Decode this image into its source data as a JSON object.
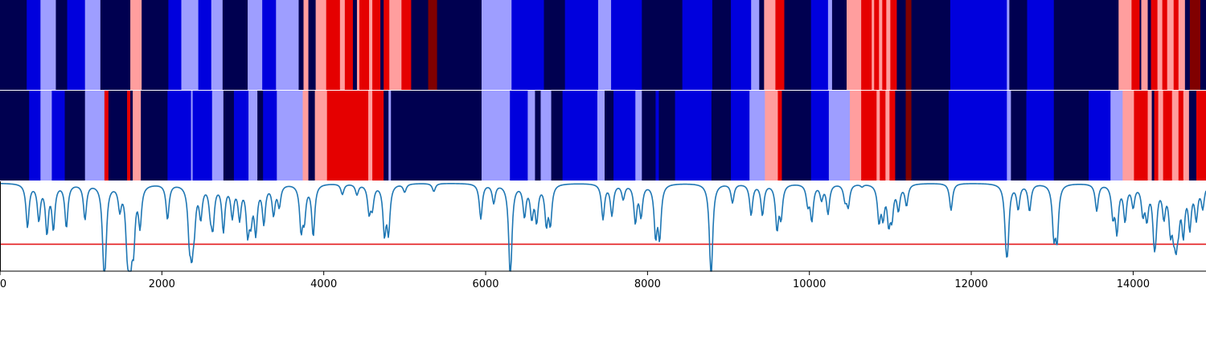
{
  "chart_data": {
    "type": "heatmap",
    "title": "",
    "xlabel": "",
    "ylabel": "",
    "xlim": [
      0,
      14900
    ],
    "x_ticks": [
      0,
      2000,
      4000,
      6000,
      8000,
      10000,
      12000,
      14000
    ],
    "colors": {
      "navy": "#000050",
      "blue": "#0000dd",
      "lightblue": "#9e9eff",
      "pink": "#ff9e9e",
      "red": "#e50000",
      "darkred": "#800000",
      "signal": "#1f77b4",
      "threshold": "#e31a1c"
    },
    "tracks": [
      {
        "name": "",
        "segments": [
          [
            0,
            330,
            "navy"
          ],
          [
            330,
            500,
            "blue"
          ],
          [
            500,
            690,
            "lightblue"
          ],
          [
            690,
            830,
            "navy"
          ],
          [
            830,
            1050,
            "blue"
          ],
          [
            1050,
            1240,
            "lightblue"
          ],
          [
            1240,
            1610,
            "navy"
          ],
          [
            1610,
            1750,
            "pink"
          ],
          [
            1750,
            2080,
            "navy"
          ],
          [
            2080,
            2240,
            "blue"
          ],
          [
            2240,
            2450,
            "lightblue"
          ],
          [
            2450,
            2610,
            "blue"
          ],
          [
            2610,
            2750,
            "lightblue"
          ],
          [
            2750,
            3060,
            "navy"
          ],
          [
            3060,
            3240,
            "lightblue"
          ],
          [
            3240,
            3410,
            "blue"
          ],
          [
            3410,
            3690,
            "lightblue"
          ],
          [
            3690,
            3750,
            "navy"
          ],
          [
            3750,
            3810,
            "pink"
          ],
          [
            3810,
            3900,
            "navy"
          ],
          [
            3900,
            4030,
            "pink"
          ],
          [
            4030,
            4200,
            "red"
          ],
          [
            4200,
            4260,
            "pink"
          ],
          [
            4260,
            4360,
            "red"
          ],
          [
            4360,
            4410,
            "navy"
          ],
          [
            4410,
            4440,
            "pink"
          ],
          [
            4440,
            4560,
            "red"
          ],
          [
            4560,
            4600,
            "pink"
          ],
          [
            4600,
            4700,
            "red"
          ],
          [
            4700,
            4740,
            "navy"
          ],
          [
            4740,
            4810,
            "red"
          ],
          [
            4810,
            4960,
            "pink"
          ],
          [
            4960,
            5080,
            "red"
          ],
          [
            5080,
            5290,
            "navy"
          ],
          [
            5290,
            5400,
            "darkred"
          ],
          [
            5400,
            5950,
            "navy"
          ],
          [
            5950,
            6320,
            "lightblue"
          ],
          [
            6320,
            6720,
            "blue"
          ],
          [
            6720,
            6980,
            "navy"
          ],
          [
            6980,
            7390,
            "blue"
          ],
          [
            7390,
            7550,
            "lightblue"
          ],
          [
            7550,
            7930,
            "blue"
          ],
          [
            7930,
            8430,
            "navy"
          ],
          [
            8430,
            8800,
            "blue"
          ],
          [
            8800,
            9030,
            "navy"
          ],
          [
            9030,
            9280,
            "blue"
          ],
          [
            9280,
            9380,
            "lightblue"
          ],
          [
            9380,
            9440,
            "navy"
          ],
          [
            9440,
            9580,
            "pink"
          ],
          [
            9580,
            9690,
            "red"
          ],
          [
            9690,
            10020,
            "navy"
          ],
          [
            10020,
            10230,
            "blue"
          ],
          [
            10230,
            10280,
            "lightblue"
          ],
          [
            10280,
            10460,
            "navy"
          ],
          [
            10460,
            10640,
            "pink"
          ],
          [
            10640,
            10770,
            "red"
          ],
          [
            10770,
            10800,
            "pink"
          ],
          [
            10800,
            10860,
            "red"
          ],
          [
            10860,
            10900,
            "pink"
          ],
          [
            10900,
            10950,
            "red"
          ],
          [
            10950,
            11000,
            "pink"
          ],
          [
            11000,
            11080,
            "red"
          ],
          [
            11080,
            11190,
            "navy"
          ],
          [
            11190,
            11260,
            "darkred"
          ],
          [
            11260,
            11740,
            "navy"
          ],
          [
            11740,
            12440,
            "blue"
          ],
          [
            12440,
            12470,
            "lightblue"
          ],
          [
            12470,
            12690,
            "navy"
          ],
          [
            12690,
            13020,
            "blue"
          ],
          [
            13020,
            13820,
            "navy"
          ],
          [
            13820,
            13980,
            "pink"
          ],
          [
            13980,
            14080,
            "red"
          ],
          [
            14080,
            14100,
            "navy"
          ],
          [
            14100,
            14180,
            "pink"
          ],
          [
            14180,
            14220,
            "navy"
          ],
          [
            14220,
            14300,
            "red"
          ],
          [
            14300,
            14360,
            "pink"
          ],
          [
            14360,
            14420,
            "red"
          ],
          [
            14420,
            14500,
            "pink"
          ],
          [
            14500,
            14560,
            "red"
          ],
          [
            14560,
            14640,
            "pink"
          ],
          [
            14640,
            14700,
            "navy"
          ],
          [
            14700,
            14830,
            "darkred"
          ],
          [
            14830,
            14900,
            "navy"
          ]
        ]
      },
      {
        "name": "",
        "segments": [
          [
            0,
            360,
            "navy"
          ],
          [
            360,
            500,
            "blue"
          ],
          [
            500,
            640,
            "lightblue"
          ],
          [
            640,
            800,
            "blue"
          ],
          [
            800,
            1050,
            "navy"
          ],
          [
            1050,
            1290,
            "lightblue"
          ],
          [
            1290,
            1340,
            "red"
          ],
          [
            1340,
            1570,
            "navy"
          ],
          [
            1570,
            1610,
            "red"
          ],
          [
            1610,
            1640,
            "navy"
          ],
          [
            1640,
            1740,
            "pink"
          ],
          [
            1740,
            2070,
            "navy"
          ],
          [
            2070,
            2360,
            "blue"
          ],
          [
            2360,
            2380,
            "lightblue"
          ],
          [
            2380,
            2620,
            "blue"
          ],
          [
            2620,
            2760,
            "lightblue"
          ],
          [
            2760,
            2890,
            "navy"
          ],
          [
            2890,
            3070,
            "blue"
          ],
          [
            3070,
            3180,
            "lightblue"
          ],
          [
            3180,
            3250,
            "navy"
          ],
          [
            3250,
            3420,
            "blue"
          ],
          [
            3420,
            3740,
            "lightblue"
          ],
          [
            3740,
            3810,
            "pink"
          ],
          [
            3810,
            3890,
            "navy"
          ],
          [
            3890,
            4040,
            "pink"
          ],
          [
            4040,
            4550,
            "red"
          ],
          [
            4550,
            4600,
            "pink"
          ],
          [
            4600,
            4740,
            "red"
          ],
          [
            4740,
            4800,
            "navy"
          ],
          [
            4800,
            4830,
            "lightblue"
          ],
          [
            4830,
            5950,
            "navy"
          ],
          [
            5950,
            6300,
            "lightblue"
          ],
          [
            6300,
            6520,
            "blue"
          ],
          [
            6520,
            6610,
            "lightblue"
          ],
          [
            6610,
            6680,
            "navy"
          ],
          [
            6680,
            6810,
            "lightblue"
          ],
          [
            6810,
            6950,
            "navy"
          ],
          [
            6950,
            7380,
            "blue"
          ],
          [
            7380,
            7470,
            "lightblue"
          ],
          [
            7470,
            7580,
            "navy"
          ],
          [
            7580,
            7850,
            "blue"
          ],
          [
            7850,
            7930,
            "lightblue"
          ],
          [
            7930,
            8100,
            "navy"
          ],
          [
            8100,
            8140,
            "blue"
          ],
          [
            8140,
            8340,
            "navy"
          ],
          [
            8340,
            8790,
            "blue"
          ],
          [
            8790,
            9030,
            "navy"
          ],
          [
            9030,
            9260,
            "blue"
          ],
          [
            9260,
            9450,
            "lightblue"
          ],
          [
            9450,
            9610,
            "pink"
          ],
          [
            9610,
            9660,
            "red"
          ],
          [
            9660,
            10020,
            "navy"
          ],
          [
            10020,
            10240,
            "blue"
          ],
          [
            10240,
            10500,
            "lightblue"
          ],
          [
            10500,
            10640,
            "pink"
          ],
          [
            10640,
            10830,
            "red"
          ],
          [
            10830,
            10870,
            "pink"
          ],
          [
            10870,
            10940,
            "red"
          ],
          [
            10940,
            10990,
            "pink"
          ],
          [
            10990,
            11060,
            "red"
          ],
          [
            11060,
            11190,
            "navy"
          ],
          [
            11190,
            11260,
            "darkred"
          ],
          [
            11260,
            11720,
            "navy"
          ],
          [
            11720,
            12440,
            "blue"
          ],
          [
            12440,
            12490,
            "lightblue"
          ],
          [
            12490,
            12680,
            "navy"
          ],
          [
            12680,
            13020,
            "blue"
          ],
          [
            13020,
            13450,
            "navy"
          ],
          [
            13450,
            13720,
            "blue"
          ],
          [
            13720,
            13870,
            "lightblue"
          ],
          [
            13870,
            14010,
            "pink"
          ],
          [
            14010,
            14180,
            "red"
          ],
          [
            14180,
            14230,
            "pink"
          ],
          [
            14230,
            14260,
            "navy"
          ],
          [
            14260,
            14310,
            "red"
          ],
          [
            14310,
            14370,
            "pink"
          ],
          [
            14370,
            14480,
            "red"
          ],
          [
            14480,
            14560,
            "pink"
          ],
          [
            14560,
            14620,
            "red"
          ],
          [
            14620,
            14690,
            "pink"
          ],
          [
            14690,
            14780,
            "navy"
          ],
          [
            14780,
            14900,
            "red"
          ]
        ]
      }
    ],
    "signal": {
      "name": "",
      "baseline": 0.98,
      "ylim": [
        -0.1,
        1.0
      ],
      "threshold": 0.23,
      "dips": [
        [
          340,
          0.45
        ],
        [
          480,
          0.55
        ],
        [
          580,
          0.4
        ],
        [
          660,
          0.45
        ],
        [
          820,
          0.45
        ],
        [
          1050,
          0.55
        ],
        [
          1280,
          0.33
        ],
        [
          1300,
          0.3
        ],
        [
          1480,
          0.7
        ],
        [
          1570,
          0.45
        ],
        [
          1600,
          0.35
        ],
        [
          1610,
          0.45
        ],
        [
          1650,
          0.35
        ],
        [
          1730,
          0.5
        ],
        [
          2070,
          0.55
        ],
        [
          2340,
          0.42
        ],
        [
          2370,
          0.35
        ],
        [
          2400,
          0.6
        ],
        [
          2480,
          0.6
        ],
        [
          2600,
          0.7
        ],
        [
          2630,
          0.52
        ],
        [
          2760,
          0.42
        ],
        [
          2870,
          0.6
        ],
        [
          2960,
          0.58
        ],
        [
          3060,
          0.43
        ],
        [
          3100,
          0.62
        ],
        [
          3160,
          0.42
        ],
        [
          3260,
          0.52
        ],
        [
          3380,
          0.62
        ],
        [
          3450,
          0.72
        ],
        [
          3720,
          0.45
        ],
        [
          3760,
          0.6
        ],
        [
          3870,
          0.35
        ],
        [
          4230,
          0.85
        ],
        [
          4410,
          0.85
        ],
        [
          4560,
          0.65
        ],
        [
          4600,
          0.72
        ],
        [
          4750,
          0.4
        ],
        [
          4800,
          0.42
        ],
        [
          5000,
          0.88
        ],
        [
          5360,
          0.88
        ],
        [
          5940,
          0.55
        ],
        [
          6100,
          0.75
        ],
        [
          6300,
          0.4
        ],
        [
          6310,
          0.35
        ],
        [
          6480,
          0.6
        ],
        [
          6570,
          0.6
        ],
        [
          6630,
          0.55
        ],
        [
          6750,
          0.52
        ],
        [
          6800,
          0.52
        ],
        [
          7450,
          0.55
        ],
        [
          7560,
          0.6
        ],
        [
          7700,
          0.8
        ],
        [
          7850,
          0.52
        ],
        [
          7920,
          0.6
        ],
        [
          8100,
          0.38
        ],
        [
          8150,
          0.36
        ],
        [
          8780,
          0.38
        ],
        [
          8790,
          0.35
        ],
        [
          9050,
          0.75
        ],
        [
          9280,
          0.6
        ],
        [
          9420,
          0.6
        ],
        [
          9600,
          0.45
        ],
        [
          9650,
          0.6
        ],
        [
          9980,
          0.75
        ],
        [
          10030,
          0.55
        ],
        [
          10150,
          0.8
        ],
        [
          10230,
          0.62
        ],
        [
          10440,
          0.8
        ],
        [
          10480,
          0.72
        ],
        [
          10650,
          0.95
        ],
        [
          10860,
          0.55
        ],
        [
          10910,
          0.62
        ],
        [
          10980,
          0.55
        ],
        [
          11020,
          0.62
        ],
        [
          11100,
          0.68
        ],
        [
          11200,
          0.72
        ],
        [
          11750,
          0.65
        ],
        [
          12430,
          0.45
        ],
        [
          12450,
          0.42
        ],
        [
          12580,
          0.68
        ],
        [
          12720,
          0.65
        ],
        [
          13020,
          0.4
        ],
        [
          13060,
          0.35
        ],
        [
          13550,
          0.65
        ],
        [
          13750,
          0.62
        ],
        [
          13800,
          0.42
        ],
        [
          13900,
          0.55
        ],
        [
          14000,
          0.72
        ],
        [
          14120,
          0.65
        ],
        [
          14170,
          0.6
        ],
        [
          14260,
          0.42
        ],
        [
          14280,
          0.62
        ],
        [
          14380,
          0.62
        ],
        [
          14460,
          0.5
        ],
        [
          14500,
          0.6
        ],
        [
          14530,
          0.45
        ],
        [
          14560,
          0.65
        ],
        [
          14620,
          0.42
        ],
        [
          14700,
          0.48
        ],
        [
          14780,
          0.58
        ],
        [
          14860,
          0.7
        ]
      ]
    }
  }
}
